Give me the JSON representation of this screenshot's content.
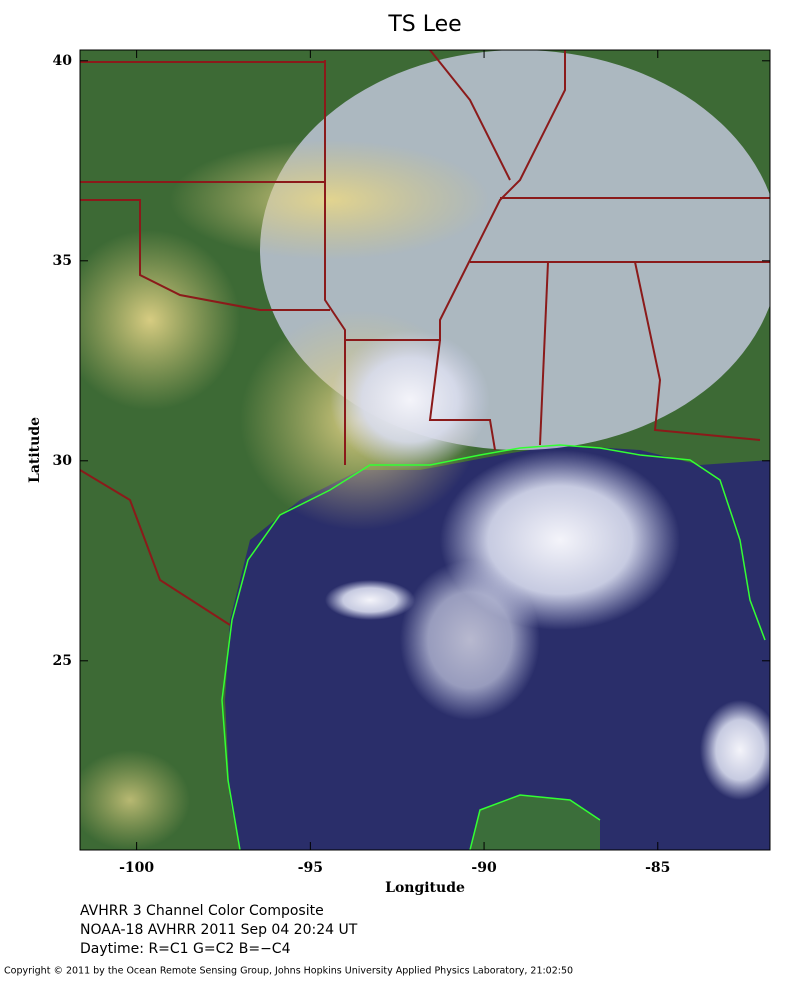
{
  "chart_data": {
    "type": "map",
    "title": "TS Lee",
    "x_label": "Longitude",
    "y_label": "Latitude",
    "xlim": [
      -101.63,
      -81.77
    ],
    "ylim": [
      20.27,
      40.27
    ],
    "xticks": [
      -100,
      -95,
      -90,
      -85
    ],
    "yticks": [
      25,
      30,
      35,
      40
    ],
    "caption": [
      "AVHRR 3 Channel Color Composite",
      "NOAA-18 AVHRR 2011 Sep 04 20:24 UT",
      "Daytime: R=C1 G=C2 B=−C4"
    ],
    "copyright": "Copyright © 2011 by the Ocean Remote Sensing Group, Johns Hopkins University Applied Physics Laboratory, 21:02:50"
  }
}
